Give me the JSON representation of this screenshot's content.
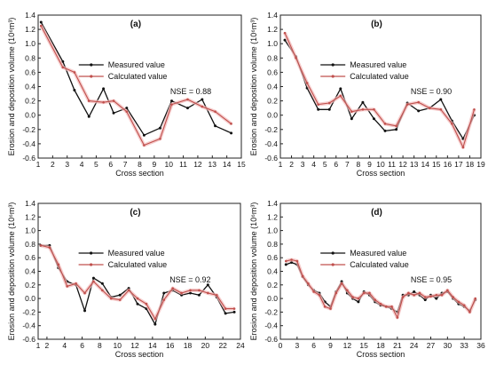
{
  "colors": {
    "measured": "#111111",
    "calculated": "#c0504d",
    "band": "#f2b8b8",
    "axis": "#222222"
  },
  "chart_data": [
    {
      "type": "line",
      "panel_label": "(a)",
      "xlabel": "Cross section",
      "ylabel": "Erosion and deposition volume (10⁶m³)",
      "xlim": [
        1,
        15
      ],
      "ylim": [
        -0.6,
        1.4
      ],
      "xticks": [
        1,
        2,
        3,
        4,
        5,
        6,
        7,
        8,
        9,
        10,
        11,
        12,
        13,
        14,
        15
      ],
      "yticks": [
        -0.6,
        -0.4,
        -0.2,
        0.0,
        0.2,
        0.4,
        0.6,
        0.8,
        1.0,
        1.2,
        1.4
      ],
      "grid": false,
      "legend_position": "top-center",
      "annotation": "NSE = 0.88",
      "series": [
        {
          "name": "Measured value",
          "x": [
            1.2,
            2.7,
            3.5,
            4.5,
            5.5,
            6.2,
            7.1,
            8.3,
            9.4,
            10.2,
            11.3,
            12.3,
            13.2,
            14.3
          ],
          "y": [
            1.3,
            0.75,
            0.35,
            -0.02,
            0.37,
            0.03,
            0.1,
            -0.28,
            -0.18,
            0.2,
            0.1,
            0.22,
            -0.15,
            -0.25
          ]
        },
        {
          "name": "Calculated value",
          "x": [
            1.2,
            2.7,
            3.5,
            4.5,
            5.5,
            6.2,
            7.1,
            8.3,
            9.4,
            10.2,
            11.3,
            12.3,
            13.2,
            14.3
          ],
          "y": [
            1.25,
            0.67,
            0.6,
            0.2,
            0.18,
            0.2,
            0.05,
            -0.42,
            -0.33,
            0.15,
            0.22,
            0.12,
            0.05,
            -0.12
          ]
        }
      ]
    },
    {
      "type": "line",
      "panel_label": "(b)",
      "xlabel": "Cross section",
      "ylabel": "Erosion and deposition volume (10⁶m³)",
      "xlim": [
        1,
        19
      ],
      "ylim": [
        -0.6,
        1.4
      ],
      "xticks": [
        1,
        2,
        3,
        4,
        5,
        6,
        7,
        8,
        9,
        10,
        11,
        12,
        13,
        14,
        15,
        16,
        17,
        18,
        19
      ],
      "yticks": [
        -0.6,
        -0.4,
        -0.2,
        0.0,
        0.2,
        0.4,
        0.6,
        0.8,
        1.0,
        1.2,
        1.4
      ],
      "grid": false,
      "legend_position": "top-center",
      "annotation": "NSE = 0.90",
      "series": [
        {
          "name": "Measured value",
          "x": [
            1.4,
            2.4,
            3.4,
            4.4,
            5.4,
            6.4,
            7.4,
            8.4,
            9.4,
            10.4,
            11.4,
            12.4,
            13.4,
            14.4,
            15.4,
            16.4,
            17.4,
            18.4
          ],
          "y": [
            1.05,
            0.82,
            0.38,
            0.08,
            0.08,
            0.37,
            -0.05,
            0.18,
            -0.05,
            -0.22,
            -0.2,
            0.17,
            0.06,
            0.1,
            0.22,
            -0.08,
            -0.33,
            0.0
          ]
        },
        {
          "name": "Calculated value",
          "x": [
            1.4,
            2.4,
            3.4,
            4.4,
            5.4,
            6.4,
            7.4,
            8.4,
            9.4,
            10.4,
            11.4,
            12.4,
            13.4,
            14.4,
            15.4,
            16.4,
            17.4,
            18.4
          ],
          "y": [
            1.15,
            0.8,
            0.45,
            0.15,
            0.17,
            0.27,
            0.05,
            0.08,
            0.08,
            -0.12,
            -0.15,
            0.15,
            0.18,
            0.1,
            0.08,
            -0.12,
            -0.45,
            0.08
          ]
        }
      ]
    },
    {
      "type": "line",
      "panel_label": "(c)",
      "xlabel": "Cross section",
      "ylabel": "Erosion and deposition volume (10⁶m³)",
      "xlim": [
        1,
        24
      ],
      "ylim": [
        -0.6,
        1.4
      ],
      "xticks": [
        1,
        2,
        4,
        6,
        8,
        10,
        12,
        14,
        16,
        18,
        20,
        22,
        24
      ],
      "yticks": [
        -0.6,
        -0.4,
        -0.2,
        0.0,
        0.2,
        0.4,
        0.6,
        0.8,
        1.0,
        1.2,
        1.4
      ],
      "grid": false,
      "legend_position": "top-center",
      "annotation": "NSE = 0.92",
      "series": [
        {
          "name": "Measured value",
          "x": [
            1.3,
            2.3,
            3.3,
            4.3,
            5.3,
            6.3,
            7.3,
            8.3,
            9.3,
            10.3,
            11.3,
            12.3,
            13.3,
            14.3,
            15.3,
            16.3,
            17.3,
            18.3,
            19.3,
            20.3,
            21.3,
            22.3,
            23.3
          ],
          "y": [
            0.78,
            0.78,
            0.45,
            0.25,
            0.2,
            -0.18,
            0.3,
            0.22,
            0.02,
            0.05,
            0.15,
            -0.08,
            -0.15,
            -0.38,
            0.08,
            0.12,
            0.05,
            0.08,
            0.05,
            0.2,
            0.02,
            -0.22,
            -0.2
          ]
        },
        {
          "name": "Calculated value",
          "x": [
            1.3,
            2.3,
            3.3,
            4.3,
            5.3,
            6.3,
            7.3,
            8.3,
            9.3,
            10.3,
            11.3,
            12.3,
            13.3,
            14.3,
            15.3,
            16.3,
            17.3,
            18.3,
            19.3,
            20.3,
            21.3,
            22.3,
            23.3
          ],
          "y": [
            0.78,
            0.75,
            0.5,
            0.18,
            0.22,
            0.08,
            0.25,
            0.12,
            0.0,
            -0.02,
            0.12,
            0.0,
            -0.08,
            -0.3,
            -0.02,
            0.15,
            0.08,
            0.12,
            0.12,
            0.08,
            0.05,
            -0.15,
            -0.15
          ]
        }
      ]
    },
    {
      "type": "line",
      "panel_label": "(d)",
      "xlabel": "Cross section",
      "ylabel": "Erosion and deposition volume (10⁶m³)",
      "xlim": [
        0,
        36
      ],
      "ylim": [
        -0.6,
        1.4
      ],
      "xticks": [
        0,
        3,
        6,
        9,
        12,
        15,
        18,
        21,
        24,
        27,
        30,
        33,
        36
      ],
      "yticks": [
        -0.6,
        -0.4,
        -0.2,
        0.0,
        0.2,
        0.4,
        0.6,
        0.8,
        1.0,
        1.2,
        1.4
      ],
      "grid": false,
      "legend_position": "top-center",
      "annotation": "NSE = 0.95",
      "series": [
        {
          "name": "Measured value",
          "x": [
            1,
            2,
            3,
            4,
            5,
            6,
            7,
            8,
            9,
            10,
            11,
            12,
            13,
            14,
            15,
            16,
            17,
            18,
            19,
            20,
            21,
            22,
            23,
            24,
            25,
            26,
            27,
            28,
            29,
            30,
            31,
            32,
            33,
            34,
            35
          ],
          "y": [
            0.5,
            0.53,
            0.5,
            0.32,
            0.2,
            0.12,
            0.08,
            -0.05,
            -0.12,
            0.1,
            0.25,
            0.08,
            0.0,
            -0.05,
            0.1,
            0.05,
            -0.05,
            -0.1,
            -0.12,
            -0.15,
            -0.2,
            0.05,
            0.05,
            0.1,
            0.05,
            -0.02,
            0.05,
            0.0,
            0.08,
            0.1,
            0.0,
            -0.08,
            -0.12,
            -0.18,
            -0.02
          ]
        },
        {
          "name": "Calculated value",
          "x": [
            1,
            2,
            3,
            4,
            5,
            6,
            7,
            8,
            9,
            10,
            11,
            12,
            13,
            14,
            15,
            16,
            17,
            18,
            19,
            20,
            21,
            22,
            23,
            24,
            25,
            26,
            27,
            28,
            29,
            30,
            31,
            32,
            33,
            34,
            35
          ],
          "y": [
            0.55,
            0.57,
            0.55,
            0.33,
            0.22,
            0.1,
            0.05,
            -0.12,
            -0.15,
            0.08,
            0.22,
            0.12,
            0.02,
            0.0,
            0.08,
            0.08,
            -0.02,
            -0.08,
            -0.12,
            -0.12,
            -0.28,
            0.02,
            0.08,
            0.05,
            0.08,
            0.02,
            0.03,
            0.05,
            0.05,
            0.12,
            0.02,
            -0.05,
            -0.1,
            -0.2,
            0.0
          ]
        }
      ]
    }
  ]
}
